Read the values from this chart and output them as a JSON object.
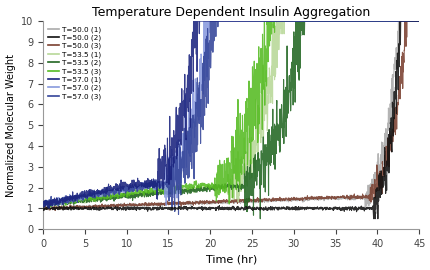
{
  "title": "Temperature Dependent Insulin Aggregation",
  "xlabel": "Time (hr)",
  "ylabel": "Normalized Molecular Weight",
  "xlim": [
    0,
    45
  ],
  "ylim": [
    0,
    10
  ],
  "xticks": [
    0,
    5,
    10,
    15,
    20,
    25,
    30,
    35,
    40,
    45
  ],
  "yticks": [
    0,
    1,
    2,
    3,
    4,
    5,
    6,
    7,
    8,
    9,
    10
  ],
  "series": [
    {
      "label": "T=50.0 (1)",
      "color": "#aaaaaa",
      "seed": 10,
      "dimer_end": 36,
      "dimer_val": 1.5,
      "rise_start": 38.5,
      "rise_rate": 0.55,
      "base_val": 1.0,
      "noise_base": 0.04,
      "noise_rise": 0.35,
      "lw": 0.8,
      "zorder": 2
    },
    {
      "label": "T=50.0 (2)",
      "color": "#111111",
      "seed": 11,
      "dimer_end": 36,
      "dimer_val": 1.0,
      "rise_start": 39.5,
      "rise_rate": 0.7,
      "base_val": 1.0,
      "noise_base": 0.04,
      "noise_rise": 0.45,
      "lw": 0.8,
      "zorder": 3
    },
    {
      "label": "T=50.0 (3)",
      "color": "#7a4030",
      "seed": 12,
      "dimer_end": 36,
      "dimer_val": 1.55,
      "rise_start": 39.0,
      "rise_rate": 0.5,
      "base_val": 1.0,
      "noise_base": 0.04,
      "noise_rise": 0.3,
      "lw": 0.8,
      "zorder": 2
    },
    {
      "label": "T=53.5 (1)",
      "color": "#b8d898",
      "seed": 20,
      "dimer_end": 20,
      "dimer_val": 2.0,
      "rise_start": 22.0,
      "rise_rate": 0.35,
      "base_val": 1.2,
      "noise_base": 0.06,
      "noise_rise": 0.55,
      "lw": 0.8,
      "zorder": 2
    },
    {
      "label": "T=53.5 (2)",
      "color": "#226622",
      "seed": 21,
      "dimer_end": 22,
      "dimer_val": 2.05,
      "rise_start": 24.0,
      "rise_rate": 0.32,
      "base_val": 1.2,
      "noise_base": 0.07,
      "noise_rise": 0.55,
      "lw": 0.8,
      "zorder": 2
    },
    {
      "label": "T=53.5 (3)",
      "color": "#55bb22",
      "seed": 22,
      "dimer_end": 18,
      "dimer_val": 2.1,
      "rise_start": 20.5,
      "rise_rate": 0.33,
      "base_val": 1.2,
      "noise_base": 0.07,
      "noise_rise": 0.6,
      "lw": 0.8,
      "zorder": 2
    },
    {
      "label": "T=57.0 (1)",
      "color": "#1a237e",
      "seed": 30,
      "dimer_end": 11,
      "dimer_val": 2.2,
      "rise_start": 13.5,
      "rise_rate": 0.45,
      "base_val": 1.2,
      "noise_base": 0.09,
      "noise_rise": 0.65,
      "lw": 0.8,
      "zorder": 3
    },
    {
      "label": "T=57.0 (2)",
      "color": "#8899dd",
      "seed": 31,
      "dimer_end": 12,
      "dimer_val": 2.1,
      "rise_start": 14.5,
      "rise_rate": 0.42,
      "base_val": 1.2,
      "noise_base": 0.08,
      "noise_rise": 0.6,
      "lw": 0.8,
      "zorder": 2
    },
    {
      "label": "T=57.0 (3)",
      "color": "#334499",
      "seed": 32,
      "dimer_end": 13,
      "dimer_val": 2.15,
      "rise_start": 15.0,
      "rise_rate": 0.4,
      "base_val": 1.2,
      "noise_base": 0.09,
      "noise_rise": 0.62,
      "lw": 0.8,
      "zorder": 2
    }
  ]
}
